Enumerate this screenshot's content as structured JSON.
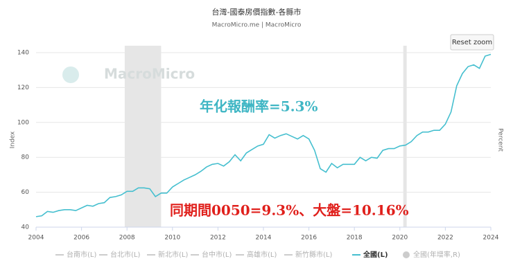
{
  "chart_data": {
    "type": "line",
    "title": "台灣-國泰房價指數-各縣市",
    "subtitle": "MacroMicro.me | MacroMicro",
    "watermark": "MacroMicro",
    "reset_button": "Reset zoom",
    "y_label": "Index",
    "y2_label": "Percent",
    "annotations": [
      "年化報酬率=5.3%",
      "同期間0050=9.3%、大盤=10.16%"
    ],
    "annotation_colors": [
      "#3fb6c4",
      "#e0201c"
    ],
    "shaded_ranges": [
      [
        2007.9,
        2009.5
      ],
      [
        2020.15,
        2020.3
      ]
    ],
    "shade_color": "#e6e6e6",
    "grid": true,
    "xlim": [
      2004,
      2024
    ],
    "xticks": [
      2004,
      2006,
      2008,
      2010,
      2012,
      2014,
      2016,
      2018,
      2020,
      2022,
      2024
    ],
    "ylim": [
      40,
      140
    ],
    "yticks": [
      40,
      60,
      80,
      100,
      120,
      140
    ],
    "x": [
      2004,
      2004.25,
      2004.5,
      2004.75,
      2005,
      2005.25,
      2005.5,
      2005.75,
      2006,
      2006.25,
      2006.5,
      2006.75,
      2007,
      2007.25,
      2007.5,
      2007.75,
      2008,
      2008.25,
      2008.5,
      2008.75,
      2009,
      2009.25,
      2009.5,
      2009.75,
      2010,
      2010.25,
      2010.5,
      2010.75,
      2011,
      2011.25,
      2011.5,
      2011.75,
      2012,
      2012.25,
      2012.5,
      2012.75,
      2013,
      2013.25,
      2013.5,
      2013.75,
      2014,
      2014.25,
      2014.5,
      2014.75,
      2015,
      2015.25,
      2015.5,
      2015.75,
      2016,
      2016.25,
      2016.5,
      2016.75,
      2017,
      2017.25,
      2017.5,
      2017.75,
      2018,
      2018.25,
      2018.5,
      2018.75,
      2019,
      2019.25,
      2019.5,
      2019.75,
      2020,
      2020.25,
      2020.5,
      2020.75,
      2021,
      2021.25,
      2021.5,
      2021.75,
      2022,
      2022.25,
      2022.5,
      2022.75,
      2023,
      2023.25,
      2023.5,
      2023.75,
      2024
    ],
    "series": [
      {
        "name": "台南市(L)",
        "color": "#cccccc",
        "visible": false
      },
      {
        "name": "台北市(L)",
        "color": "#cccccc",
        "visible": false
      },
      {
        "name": "新北市(L)",
        "color": "#cccccc",
        "visible": false
      },
      {
        "name": "台中市(L)",
        "color": "#cccccc",
        "visible": false
      },
      {
        "name": "高雄市(L)",
        "color": "#cccccc",
        "visible": false
      },
      {
        "name": "新竹縣市(L)",
        "color": "#cccccc",
        "visible": false
      },
      {
        "name": "全國(L)",
        "color": "#45bfcf",
        "visible": true,
        "values": [
          46,
          46.5,
          49,
          48.5,
          49.5,
          50,
          50,
          49.5,
          51,
          52.5,
          52,
          53.5,
          54,
          57,
          57.5,
          58.5,
          60.5,
          60.5,
          62.5,
          62.5,
          62,
          57.5,
          59.5,
          59.5,
          63,
          65,
          67,
          68.5,
          70,
          72,
          74.5,
          76,
          76.5,
          75,
          77.5,
          81.5,
          78,
          82.5,
          84.5,
          86.5,
          87.5,
          93,
          91,
          92.5,
          93.5,
          92,
          90.5,
          92.5,
          90.5,
          84,
          73.5,
          71.5,
          76.5,
          74,
          76,
          76,
          76,
          80,
          78,
          80,
          79.5,
          84,
          85,
          85,
          86.5,
          87,
          89,
          92.5,
          94.5,
          94.5,
          95.5,
          95.5,
          99,
          106,
          121,
          128,
          132,
          133,
          131,
          138,
          139
        ]
      },
      {
        "name": "全國(年增率,R)",
        "color": "#cccccc",
        "visible": false,
        "axis": "y2"
      }
    ]
  }
}
